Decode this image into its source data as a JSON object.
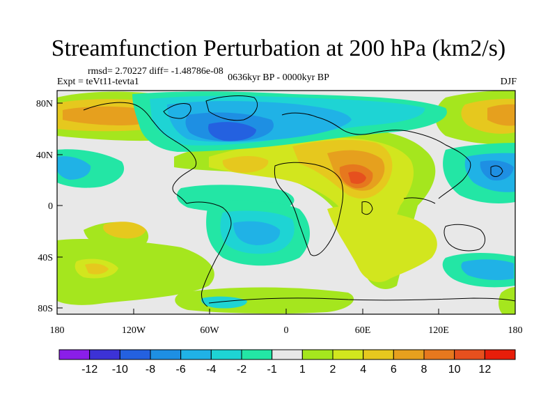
{
  "title": "Streamfunction Perturbation at 200 hPa (km2/s)",
  "stats": "rmsd= 2.70227 diff= -1.48786e-08",
  "experiment": "Expt = teVt11-tevta1",
  "period": "0636kyr BP - 0000kyr BP",
  "season": "DJF",
  "lat_ticks": [
    "80N",
    "40N",
    "0",
    "40S",
    "80S"
  ],
  "lon_ticks": [
    "180",
    "120W",
    "60W",
    "0",
    "60E",
    "120E",
    "180"
  ],
  "colorbar": {
    "labels": [
      "-12",
      "-10",
      "-8",
      "-6",
      "-4",
      "-2",
      "-1",
      "1",
      "2",
      "4",
      "6",
      "8",
      "10",
      "12"
    ],
    "colors": [
      "#8a1ee8",
      "#3c32d6",
      "#2461e0",
      "#1e8fe3",
      "#20b2e6",
      "#1ed4d4",
      "#23e6a5",
      "#e8e8e8",
      "#a5e61e",
      "#d2e61e",
      "#e6c81e",
      "#e6a01e",
      "#e6781e",
      "#e6501e",
      "#e81e0a"
    ]
  }
}
